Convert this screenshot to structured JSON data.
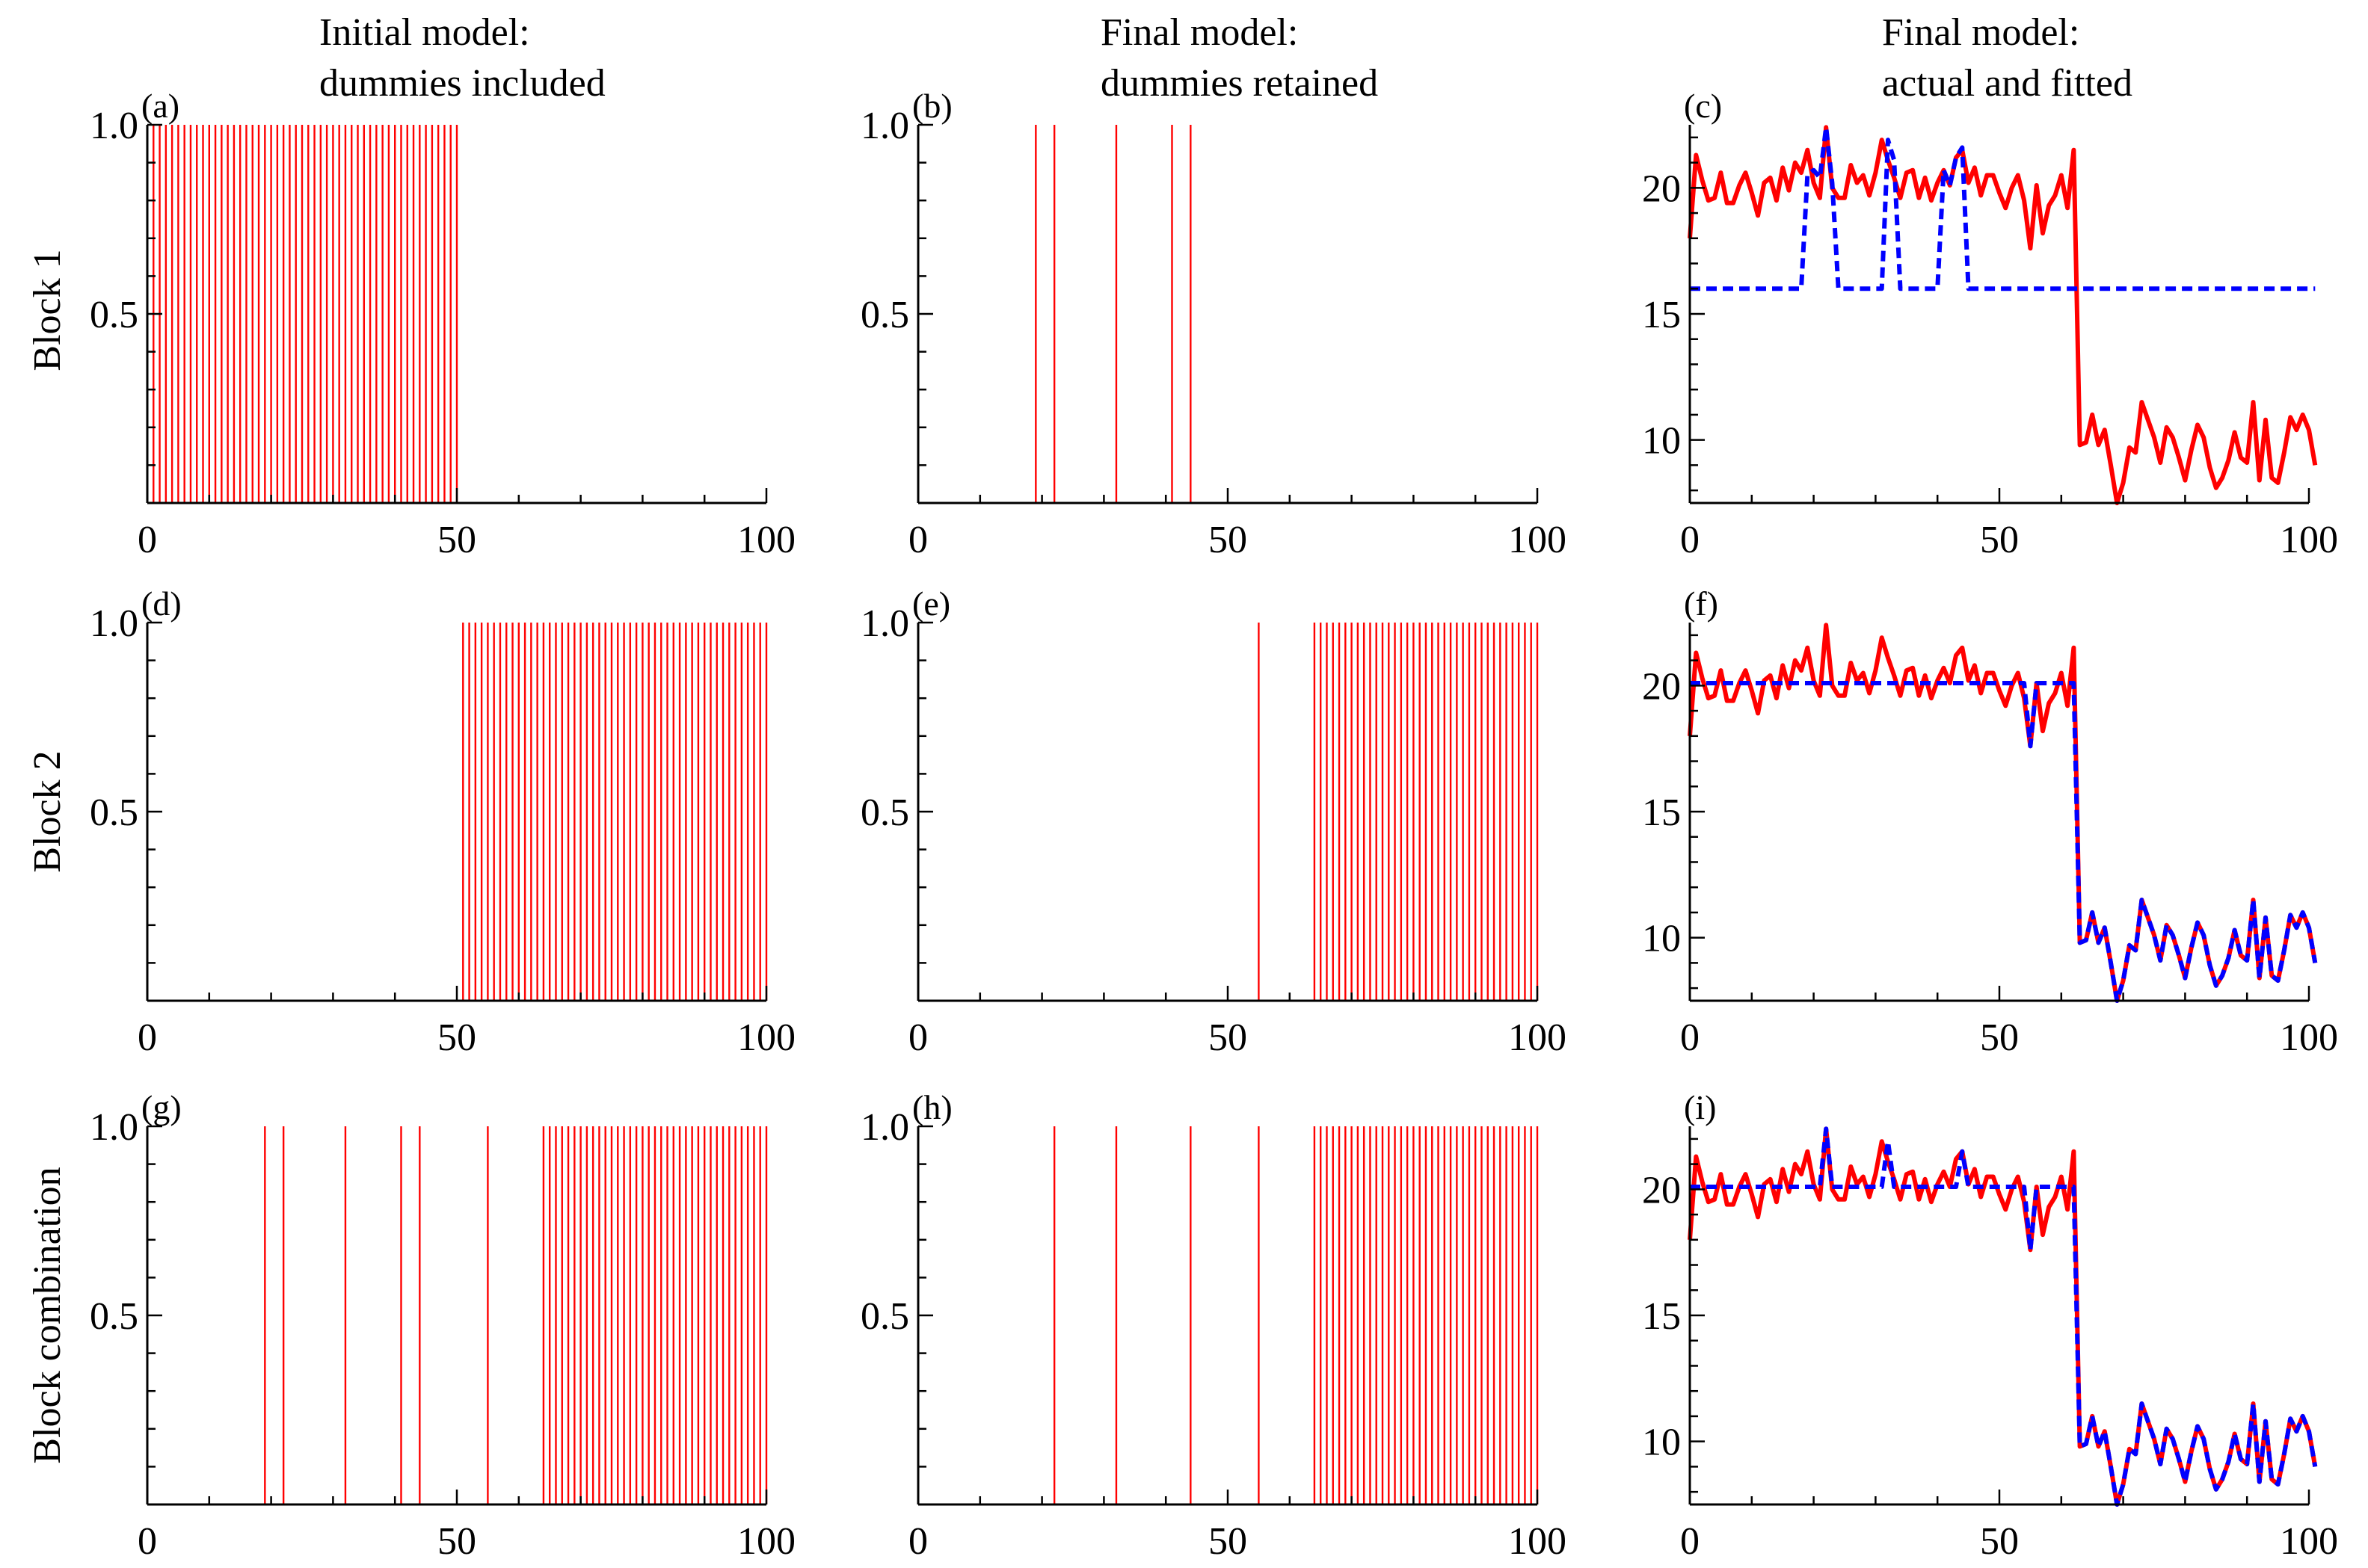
{
  "column_titles": [
    {
      "line1": "Initial model:",
      "line2": "dummies included"
    },
    {
      "line1": "Final model:",
      "line2": "dummies retained"
    },
    {
      "line1": "Final model:",
      "line2": "actual and fitted"
    }
  ],
  "row_labels": [
    "Block 1",
    "Block 2",
    "Block combination"
  ],
  "colors": {
    "actual": "#ff0000",
    "fitted": "#0000ff",
    "dummy": "#ff0000"
  },
  "series_data": {
    "actual": [
      18,
      21.3,
      20.3,
      19.5,
      19.6,
      20.6,
      19.4,
      19.4,
      20.1,
      20.6,
      19.8,
      18.9,
      20.2,
      20.4,
      19.5,
      20.8,
      19.9,
      21,
      20.6,
      21.5,
      20.2,
      19.6,
      22.4,
      20,
      19.6,
      19.6,
      20.9,
      20.2,
      20.5,
      19.7,
      20.6,
      21.9,
      21.1,
      20.4,
      19.6,
      20.6,
      20.7,
      19.6,
      20.4,
      19.5,
      20.2,
      20.7,
      20.1,
      21.2,
      21.5,
      20.2,
      20.8,
      19.7,
      20.5,
      20.5,
      19.8,
      19.2,
      20,
      20.5,
      19.5,
      17.6,
      20.1,
      18.2,
      19.3,
      19.7,
      20.5,
      19.2,
      21.5,
      9.8,
      9.9,
      11,
      9.8,
      10.4,
      9,
      7.5,
      8.3,
      9.7,
      9.5,
      11.5,
      10.8,
      10.1,
      9.1,
      10.5,
      10.1,
      9.3,
      8.4,
      9.6,
      10.6,
      10.1,
      8.9,
      8.1,
      8.5,
      9.2,
      10.3,
      9.3,
      9.1,
      11.5,
      8.4,
      10.8,
      8.5,
      8.3,
      9.5,
      10.9,
      10.4,
      11,
      10.4,
      9
    ]
  },
  "chart_data": [
    {
      "id": "a",
      "panel_label": "(a)",
      "type": "bar",
      "description": "dummy spikes",
      "xlim": [
        0,
        100
      ],
      "ylim": [
        0,
        1
      ],
      "xticks": [
        "0",
        "50",
        "100"
      ],
      "yticks": [
        "0.5",
        "1.0"
      ],
      "spike_height": 1,
      "spikes": [
        1,
        2,
        3,
        4,
        5,
        6,
        7,
        8,
        9,
        10,
        11,
        12,
        13,
        14,
        15,
        16,
        17,
        18,
        19,
        20,
        21,
        22,
        23,
        24,
        25,
        26,
        27,
        28,
        29,
        30,
        31,
        32,
        33,
        34,
        35,
        36,
        37,
        38,
        39,
        40,
        41,
        42,
        43,
        44,
        45,
        46,
        47,
        48,
        49,
        50
      ]
    },
    {
      "id": "b",
      "panel_label": "(b)",
      "type": "bar",
      "description": "dummy spikes",
      "xlim": [
        0,
        100
      ],
      "ylim": [
        0,
        1
      ],
      "xticks": [
        "0",
        "50",
        "100"
      ],
      "yticks": [
        "0.5",
        "1.0"
      ],
      "spike_height": 1,
      "spikes": [
        19,
        22,
        32,
        41,
        44
      ]
    },
    {
      "id": "c",
      "panel_label": "(c)",
      "type": "line",
      "description": "actual and fitted",
      "xlim": [
        0,
        100
      ],
      "ylim": [
        7.5,
        22.5
      ],
      "xticks": [
        "0",
        "50",
        "100"
      ],
      "yticks": [
        "10",
        "15",
        "20"
      ],
      "fitted_base": 16,
      "fitted_overrides": {
        "19": 20.5,
        "20": 20.7,
        "21": 20.4,
        "22": 22.4,
        "23": 20.2,
        "32": 21.9,
        "33": 21.1,
        "41": 20.7,
        "42": 20.1,
        "43": 21.2,
        "44": 21.6
      }
    },
    {
      "id": "d",
      "panel_label": "(d)",
      "type": "bar",
      "description": "dummy spikes",
      "xlim": [
        0,
        100
      ],
      "ylim": [
        0,
        1
      ],
      "xticks": [
        "0",
        "50",
        "100"
      ],
      "yticks": [
        "0.5",
        "1.0"
      ],
      "spike_height": 1,
      "spikes": [
        51,
        52,
        53,
        54,
        55,
        56,
        57,
        58,
        59,
        60,
        61,
        62,
        63,
        64,
        65,
        66,
        67,
        68,
        69,
        70,
        71,
        72,
        73,
        74,
        75,
        76,
        77,
        78,
        79,
        80,
        81,
        82,
        83,
        84,
        85,
        86,
        87,
        88,
        89,
        90,
        91,
        92,
        93,
        94,
        95,
        96,
        97,
        98,
        99,
        100
      ]
    },
    {
      "id": "e",
      "panel_label": "(e)",
      "type": "bar",
      "description": "dummy spikes",
      "xlim": [
        0,
        100
      ],
      "ylim": [
        0,
        1
      ],
      "xticks": [
        "0",
        "50",
        "100"
      ],
      "yticks": [
        "0.5",
        "1.0"
      ],
      "spike_height": 1,
      "spikes": [
        55,
        64,
        65,
        66,
        67,
        68,
        69,
        70,
        71,
        72,
        73,
        74,
        75,
        76,
        77,
        78,
        79,
        80,
        81,
        82,
        83,
        84,
        85,
        86,
        87,
        88,
        89,
        90,
        91,
        92,
        93,
        94,
        95,
        96,
        97,
        98,
        99,
        100
      ]
    },
    {
      "id": "f",
      "panel_label": "(f)",
      "type": "line",
      "description": "actual and fitted",
      "xlim": [
        0,
        100
      ],
      "ylim": [
        7.5,
        22.5
      ],
      "xticks": [
        "0",
        "50",
        "100"
      ],
      "yticks": [
        "10",
        "15",
        "20"
      ],
      "fitted_pre": 20.1,
      "break_at": 63,
      "fitted_overrides": {
        "55": 17.6
      }
    },
    {
      "id": "g",
      "panel_label": "(g)",
      "type": "bar",
      "description": "dummy spikes",
      "xlim": [
        0,
        100
      ],
      "ylim": [
        0,
        1
      ],
      "xticks": [
        "0",
        "50",
        "100"
      ],
      "yticks": [
        "0.5",
        "1.0"
      ],
      "spike_height": 1,
      "spikes": [
        19,
        22,
        32,
        41,
        44,
        55,
        64,
        65,
        66,
        67,
        68,
        69,
        70,
        71,
        72,
        73,
        74,
        75,
        76,
        77,
        78,
        79,
        80,
        81,
        82,
        83,
        84,
        85,
        86,
        87,
        88,
        89,
        90,
        91,
        92,
        93,
        94,
        95,
        96,
        97,
        98,
        99,
        100
      ]
    },
    {
      "id": "h",
      "panel_label": "(h)",
      "type": "bar",
      "description": "dummy spikes",
      "xlim": [
        0,
        100
      ],
      "ylim": [
        0,
        1
      ],
      "xticks": [
        "0",
        "50",
        "100"
      ],
      "yticks": [
        "0.5",
        "1.0"
      ],
      "spike_height": 1,
      "spikes": [
        22,
        32,
        44,
        55,
        64,
        65,
        66,
        67,
        68,
        69,
        70,
        71,
        72,
        73,
        74,
        75,
        76,
        77,
        78,
        79,
        80,
        81,
        82,
        83,
        84,
        85,
        86,
        87,
        88,
        89,
        90,
        91,
        92,
        93,
        94,
        95,
        96,
        97,
        98,
        99,
        100
      ]
    },
    {
      "id": "i",
      "panel_label": "(i)",
      "type": "line",
      "description": "actual and fitted",
      "xlim": [
        0,
        100
      ],
      "ylim": [
        7.5,
        22.5
      ],
      "xticks": [
        "0",
        "50",
        "100"
      ],
      "yticks": [
        "10",
        "15",
        "20"
      ],
      "fitted_pre": 20.1,
      "break_at": 63,
      "fitted_overrides": {
        "22": 22.4,
        "32": 21.9,
        "44": 21.5,
        "55": 17.6
      }
    }
  ]
}
